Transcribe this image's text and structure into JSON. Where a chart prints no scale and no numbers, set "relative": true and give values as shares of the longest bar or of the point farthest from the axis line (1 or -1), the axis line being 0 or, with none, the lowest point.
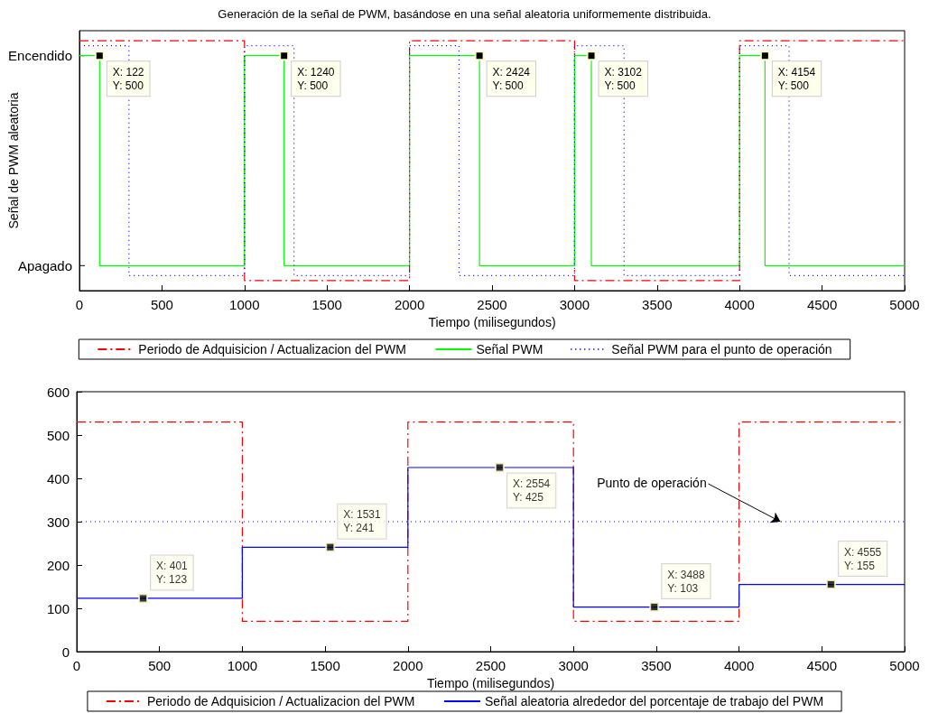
{
  "chart_data": [
    {
      "type": "step",
      "relative": true,
      "title": "Generación de la señal de PWM, basándose en una señal aleatoria uniformemente distribuida.",
      "xlabel": "Tiempo (milisegundos)",
      "ylabel": "Señal de PWM aleatoria",
      "xlim": [
        0,
        5000
      ],
      "xticks": [
        0,
        500,
        1000,
        1500,
        2000,
        2500,
        3000,
        3500,
        4000,
        4500,
        5000
      ],
      "legend": "bottom",
      "grid": false,
      "annotations": [
        "Encendido",
        "Apagado",
        {
          "text": "X: 122\nY: 500",
          "x": 122,
          "y": 0.94
        },
        {
          "text": "X: 1240\nY: 500",
          "x": 1240,
          "y": 0.94
        },
        {
          "text": "X: 2424\nY: 500",
          "x": 2424,
          "y": 0.94
        },
        {
          "text": "X: 3102\nY: 500",
          "x": 3102,
          "y": 0.94
        },
        {
          "text": "X: 4154\nY: 500",
          "x": 4154,
          "y": 0.94
        }
      ],
      "series": [
        {
          "name": "Periodo de Adquisicion / Actualizacion del PWM",
          "color": "#ff0000",
          "line_style": "dashed",
          "x": [
            0,
            1000,
            2000,
            3000,
            4000,
            5000
          ],
          "values": [
            1,
            0.04,
            1,
            0.04,
            1,
            1
          ]
        },
        {
          "name": "Señal PWM",
          "color": "#00ff00",
          "line_style": "solid",
          "x": [
            0,
            122,
            1000,
            1240,
            2000,
            2424,
            3000,
            3102,
            4000,
            4154,
            5000
          ],
          "values": [
            0.94,
            0.1,
            0.94,
            0.1,
            0.94,
            0.1,
            0.94,
            0.1,
            0.94,
            0.1,
            0.1
          ]
        },
        {
          "name": "Señal PWM para el punto de operación",
          "color": "#0000ff",
          "line_style": "dotted",
          "x": [
            0,
            300,
            1000,
            1300,
            2000,
            2300,
            3000,
            3300,
            4000,
            4300,
            5000
          ],
          "values": [
            0.98,
            0.06,
            0.98,
            0.06,
            0.98,
            0.06,
            0.98,
            0.06,
            0.98,
            0.06,
            0.06
          ]
        }
      ]
    },
    {
      "type": "step",
      "xlabel": "Tiempo (milisegundos)",
      "xlim": [
        0,
        5000
      ],
      "xticks": [
        0,
        500,
        1000,
        1500,
        2000,
        2500,
        3000,
        3500,
        4000,
        4500,
        5000
      ],
      "ylim": [
        0,
        600
      ],
      "yticks": [
        0,
        100,
        200,
        300,
        400,
        500,
        600
      ],
      "legend": "bottom",
      "grid": false,
      "annotations": [
        {
          "text": "Punto de operación",
          "x": 4250,
          "y": 300
        }
      ],
      "series": [
        {
          "name": "Periodo de Adquisicion / Actualizacion del PWM",
          "color": "#ff0000",
          "line_style": "dashed",
          "x": [
            0,
            1000,
            2000,
            3000,
            4000,
            5000
          ],
          "values": [
            530,
            70,
            530,
            70,
            530,
            530
          ]
        },
        {
          "name": "Señal aleatoria alrededor del porcentaje de trabajo del PWM",
          "color": "#0000ff",
          "line_style": "solid",
          "x": [
            0,
            1000,
            2000,
            3000,
            4000,
            5000
          ],
          "values": [
            123,
            241,
            425,
            103,
            155,
            155
          ]
        },
        {
          "color": "#0000ff",
          "line_style": "dotted",
          "x": [
            0,
            5000
          ],
          "values": [
            300,
            300
          ]
        },
        {
          "type": "scatter",
          "color": "#000000",
          "marker": "square",
          "x": [
            401,
            1531,
            2554,
            3488,
            4555
          ],
          "values": [
            123,
            241,
            425,
            103,
            155
          ],
          "value_labels": [
            "X: 401\nY: 123",
            "X: 1531\nY: 241",
            "X: 2554\nY: 425",
            "X: 3488\nY: 103",
            "X: 4555\nY: 155"
          ]
        }
      ]
    }
  ]
}
